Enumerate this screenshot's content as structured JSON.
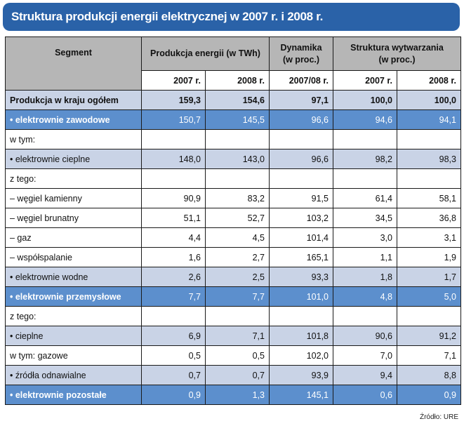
{
  "title": "Struktura produkcji energii elektrycznej w 2007 r. i 2008 r.",
  "headers": {
    "segment": "Segment",
    "produkcja": "Produkcja energii (w TWh)",
    "dynamika_line1": "Dynamika",
    "dynamika_line2": "(w proc.)",
    "struktura_line1": "Struktura wytwarzania",
    "struktura_line2": "(w proc.)",
    "sub": [
      "2007 r.",
      "2008 r.",
      "2007/08 r.",
      "2007 r.",
      "2008 r."
    ]
  },
  "rows": [
    {
      "style": "total",
      "label": "Produkcja w kraju ogółem",
      "values": [
        "159,3",
        "154,6",
        "97,1",
        "100,0",
        "100,0"
      ]
    },
    {
      "style": "main",
      "label": "• elektrownie zawodowe",
      "values": [
        "150,7",
        "145,5",
        "96,6",
        "94,6",
        "94,1"
      ]
    },
    {
      "style": "plain",
      "label": "w tym:",
      "values": [
        "",
        "",
        "",
        "",
        ""
      ]
    },
    {
      "style": "alt",
      "label": "• elektrownie cieplne",
      "values": [
        "148,0",
        "143,0",
        "96,6",
        "98,2",
        "98,3"
      ]
    },
    {
      "style": "plain",
      "label": "z tego:",
      "values": [
        "",
        "",
        "",
        "",
        ""
      ]
    },
    {
      "style": "plain",
      "label": "– węgiel kamienny",
      "values": [
        "90,9",
        "83,2",
        "91,5",
        "61,4",
        "58,1"
      ]
    },
    {
      "style": "plain",
      "label": "– węgiel brunatny",
      "values": [
        "51,1",
        "52,7",
        "103,2",
        "34,5",
        "36,8"
      ]
    },
    {
      "style": "plain",
      "label": "– gaz",
      "values": [
        "4,4",
        "4,5",
        "101,4",
        "3,0",
        "3,1"
      ]
    },
    {
      "style": "plain",
      "label": "– współspalanie",
      "values": [
        "1,6",
        "2,7",
        "165,1",
        "1,1",
        "1,9"
      ]
    },
    {
      "style": "alt",
      "label": "• elektrownie wodne",
      "values": [
        "2,6",
        "2,5",
        "93,3",
        "1,8",
        "1,7"
      ]
    },
    {
      "style": "main",
      "label": "• elektrownie przemysłowe",
      "values": [
        "7,7",
        "7,7",
        "101,0",
        "4,8",
        "5,0"
      ]
    },
    {
      "style": "plain",
      "label": "z tego:",
      "values": [
        "",
        "",
        "",
        "",
        ""
      ]
    },
    {
      "style": "alt",
      "label": "• cieplne",
      "values": [
        "6,9",
        "7,1",
        "101,8",
        "90,6",
        "91,2"
      ]
    },
    {
      "style": "plain",
      "label": "w tym: gazowe",
      "values": [
        "0,5",
        "0,5",
        "102,0",
        "7,0",
        "7,1"
      ]
    },
    {
      "style": "alt",
      "label": "• źródła odnawialne",
      "values": [
        "0,7",
        "0,7",
        "93,9",
        "9,4",
        "8,8"
      ]
    },
    {
      "style": "main",
      "label": "• elektrownie pozostałe",
      "values": [
        "0,9",
        "1,3",
        "145,1",
        "0,6",
        "0,9"
      ]
    }
  ],
  "source": "Źródło: URE",
  "colors": {
    "title_bar": "#2a62a8",
    "header_gray": "#b6b6b6",
    "row_dark_blue": "#5c8fcd",
    "row_light_blue": "#c9d3e6"
  }
}
